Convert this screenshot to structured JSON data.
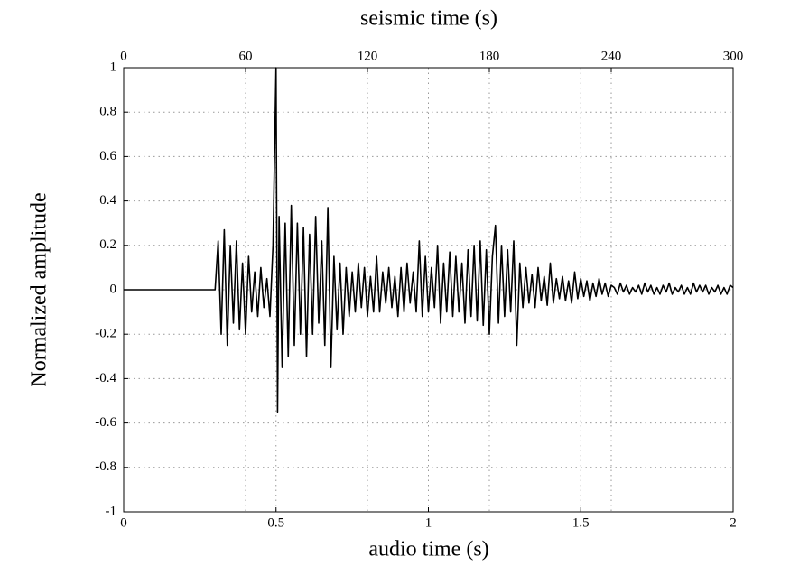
{
  "chart_data": {
    "type": "line",
    "title": "seismic time (s)",
    "xlabel": "audio time (s)",
    "ylabel": "Normalized amplitude",
    "color": "#000000",
    "grid": true,
    "xlim": [
      0,
      2
    ],
    "xticks": [
      0,
      0.5,
      1,
      1.5,
      2
    ],
    "x2lim": [
      0,
      300
    ],
    "x2ticks": [
      0,
      60,
      120,
      180,
      240,
      300
    ],
    "ylim": [
      -1,
      1
    ],
    "yticks": [
      -1,
      -0.8,
      -0.6,
      -0.4,
      -0.2,
      0,
      0.2,
      0.4,
      0.6,
      0.8,
      1
    ],
    "x": [
      0,
      0.3,
      0.31,
      0.32,
      0.33,
      0.34,
      0.35,
      0.36,
      0.37,
      0.38,
      0.39,
      0.4,
      0.41,
      0.42,
      0.43,
      0.44,
      0.45,
      0.46,
      0.47,
      0.48,
      0.49,
      0.5,
      0.505,
      0.51,
      0.52,
      0.53,
      0.54,
      0.55,
      0.56,
      0.57,
      0.58,
      0.59,
      0.6,
      0.61,
      0.62,
      0.63,
      0.64,
      0.65,
      0.66,
      0.67,
      0.68,
      0.69,
      0.7,
      0.71,
      0.72,
      0.73,
      0.74,
      0.75,
      0.76,
      0.77,
      0.78,
      0.79,
      0.8,
      0.81,
      0.82,
      0.83,
      0.84,
      0.85,
      0.86,
      0.87,
      0.88,
      0.89,
      0.9,
      0.91,
      0.92,
      0.93,
      0.94,
      0.95,
      0.96,
      0.97,
      0.98,
      0.99,
      1.0,
      1.01,
      1.02,
      1.03,
      1.04,
      1.05,
      1.06,
      1.07,
      1.08,
      1.09,
      1.1,
      1.11,
      1.12,
      1.13,
      1.14,
      1.15,
      1.16,
      1.17,
      1.18,
      1.19,
      1.2,
      1.21,
      1.22,
      1.23,
      1.24,
      1.25,
      1.26,
      1.27,
      1.28,
      1.29,
      1.3,
      1.31,
      1.32,
      1.33,
      1.34,
      1.35,
      1.36,
      1.37,
      1.38,
      1.39,
      1.4,
      1.41,
      1.42,
      1.43,
      1.44,
      1.45,
      1.46,
      1.47,
      1.48,
      1.49,
      1.5,
      1.51,
      1.52,
      1.53,
      1.54,
      1.55,
      1.56,
      1.57,
      1.58,
      1.59,
      1.6,
      1.61,
      1.62,
      1.63,
      1.64,
      1.65,
      1.66,
      1.67,
      1.68,
      1.69,
      1.7,
      1.71,
      1.72,
      1.73,
      1.74,
      1.75,
      1.76,
      1.77,
      1.78,
      1.79,
      1.8,
      1.81,
      1.82,
      1.83,
      1.84,
      1.85,
      1.86,
      1.87,
      1.88,
      1.89,
      1.9,
      1.91,
      1.92,
      1.93,
      1.94,
      1.95,
      1.96,
      1.97,
      1.98,
      1.99,
      2.0
    ],
    "values": [
      0,
      0,
      0.22,
      -0.2,
      0.27,
      -0.25,
      0.2,
      -0.15,
      0.22,
      -0.18,
      0.12,
      -0.2,
      0.15,
      -0.1,
      0.08,
      -0.12,
      0.1,
      -0.08,
      0.05,
      -0.12,
      0.2,
      1,
      -0.55,
      0.33,
      -0.35,
      0.3,
      -0.3,
      0.38,
      -0.25,
      0.3,
      -0.2,
      0.28,
      -0.3,
      0.25,
      -0.2,
      0.33,
      -0.15,
      0.22,
      -0.25,
      0.37,
      -0.35,
      0.15,
      -0.18,
      0.12,
      -0.2,
      0.1,
      -0.12,
      0.08,
      -0.1,
      0.12,
      -0.08,
      0.1,
      -0.12,
      0.06,
      -0.1,
      0.15,
      -0.1,
      0.08,
      -0.06,
      0.1,
      -0.08,
      0.06,
      -0.12,
      0.1,
      -0.1,
      0.12,
      -0.06,
      0.08,
      -0.1,
      0.22,
      -0.12,
      0.15,
      -0.1,
      0.1,
      -0.08,
      0.2,
      -0.15,
      0.12,
      -0.1,
      0.17,
      -0.12,
      0.15,
      -0.1,
      0.12,
      -0.15,
      0.18,
      -0.12,
      0.2,
      -0.14,
      0.22,
      -0.16,
      0.18,
      -0.2,
      0.15,
      0.29,
      -0.15,
      0.2,
      -0.12,
      0.18,
      -0.1,
      0.22,
      -0.25,
      0.12,
      -0.08,
      0.1,
      -0.06,
      0.07,
      -0.08,
      0.1,
      -0.05,
      0.06,
      -0.07,
      0.12,
      -0.06,
      0.05,
      -0.04,
      0.06,
      -0.05,
      0.04,
      -0.06,
      0.08,
      -0.04,
      0.05,
      -0.03,
      0.04,
      -0.05,
      0.03,
      -0.03,
      0.05,
      -0.02,
      0.03,
      -0.03,
      0.02,
      0.01,
      -0.02,
      0.03,
      -0.01,
      0.02,
      -0.02,
      0.01,
      -0.01,
      0.02,
      -0.02,
      0.03,
      -0.01,
      0.02,
      -0.02,
      0.01,
      -0.02,
      0.02,
      -0.01,
      0.03,
      -0.02,
      0.01,
      -0.01,
      0.02,
      -0.02,
      0.01,
      -0.02,
      0.03,
      -0.01,
      0.02,
      -0.01,
      0.02,
      -0.02,
      0.01,
      -0.01,
      0.02,
      -0.02,
      0.01,
      -0.02,
      0.02,
      0.01
    ]
  }
}
